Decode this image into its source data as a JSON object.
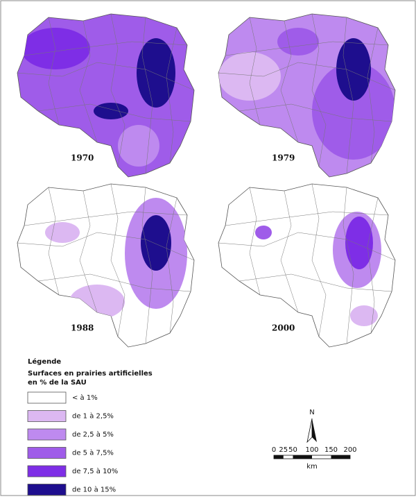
{
  "figure": {
    "maps": [
      {
        "year": "1970"
      },
      {
        "year": "1979"
      },
      {
        "year": "1988"
      },
      {
        "year": "2000"
      }
    ],
    "legend": {
      "heading": "Légende",
      "title_lines": [
        "Surfaces en prairies artificielles",
        "en % de la SAU"
      ],
      "classes": [
        {
          "label": "< à 1%",
          "color": "#ffffff"
        },
        {
          "label": "de 1 à 2,5%",
          "color": "#dcb8f2"
        },
        {
          "label": "de 2,5 à 5%",
          "color": "#be8aef"
        },
        {
          "label": "de 5 à 7,5%",
          "color": "#9f5ce9"
        },
        {
          "label": "de 7,5 à 10%",
          "color": "#7e2ee6"
        },
        {
          "label": "de 10 à 15%",
          "color": "#1e0e8e"
        }
      ]
    },
    "north": "N",
    "scale": {
      "ticks": [
        "0",
        "25",
        "50",
        "100",
        "150",
        "200"
      ],
      "unit": "km"
    }
  }
}
